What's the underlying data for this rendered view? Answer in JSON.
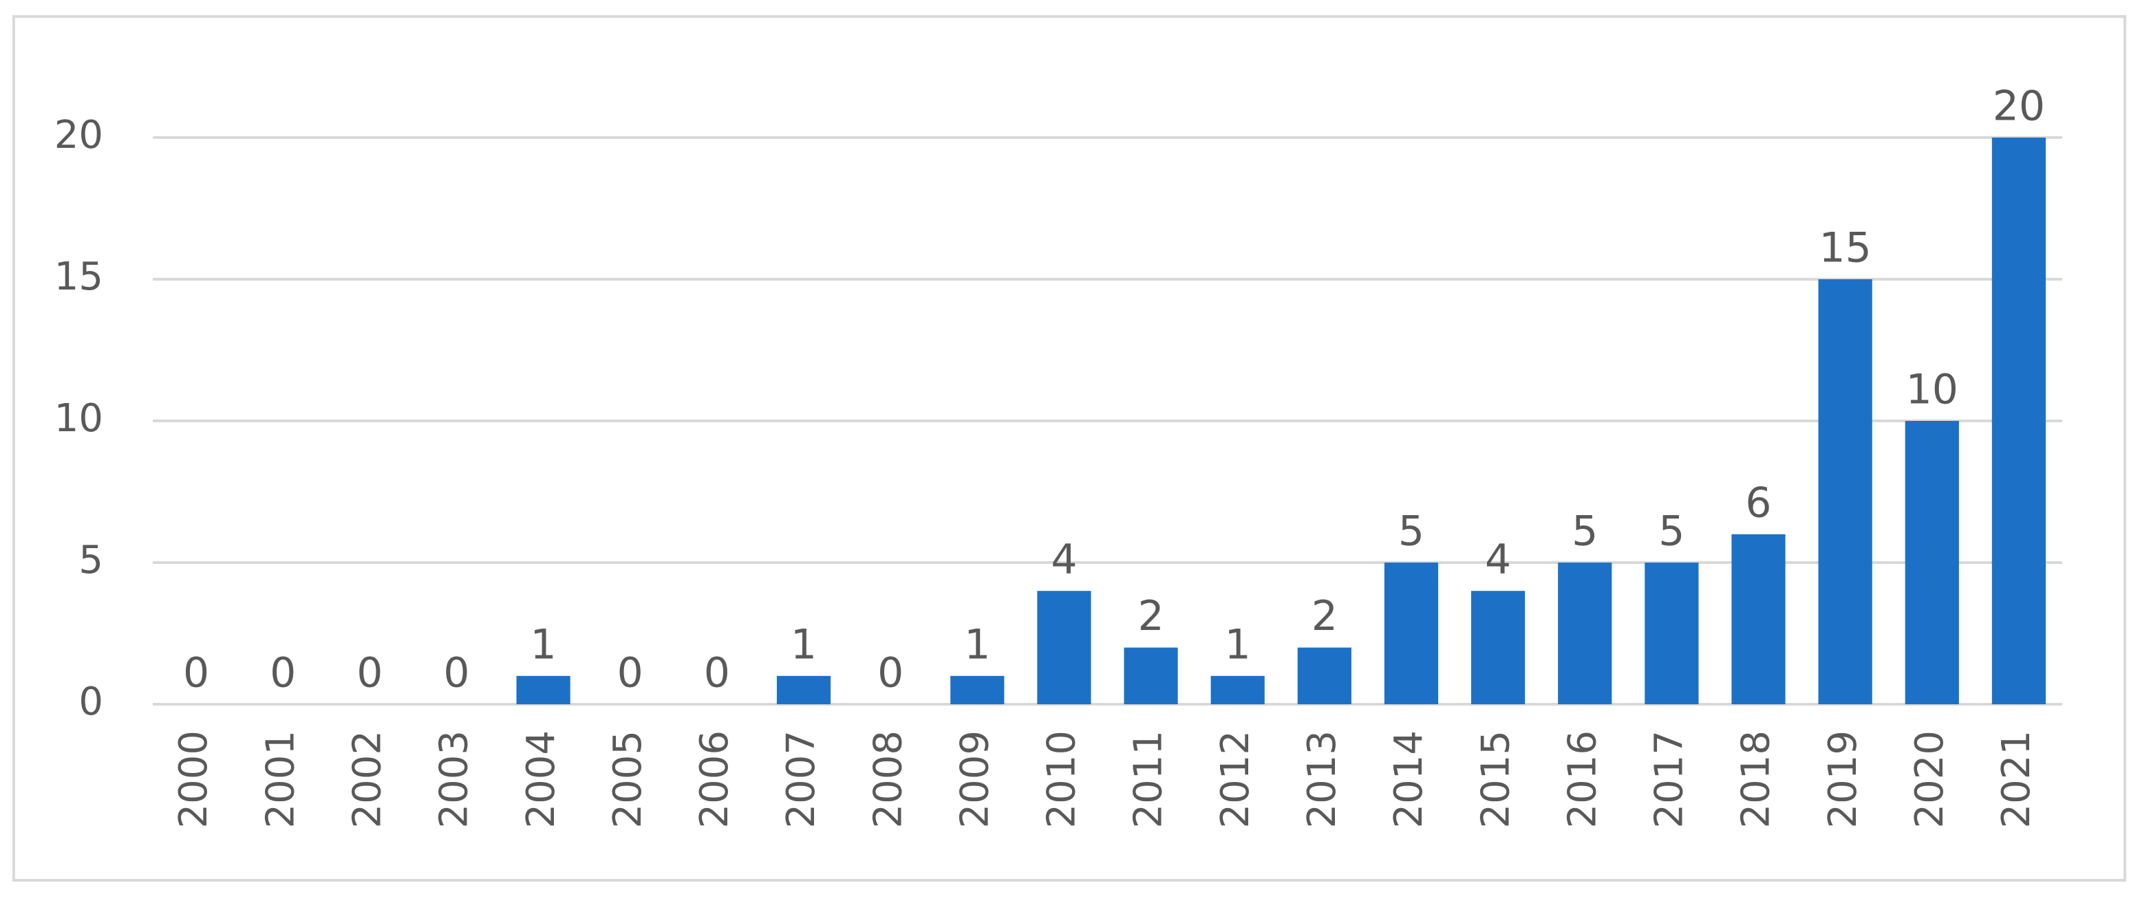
{
  "chart_data": {
    "type": "bar",
    "categories": [
      "2000",
      "2001",
      "2002",
      "2003",
      "2004",
      "2005",
      "2006",
      "2007",
      "2008",
      "2009",
      "2010",
      "2011",
      "2012",
      "2013",
      "2014",
      "2015",
      "2016",
      "2017",
      "2018",
      "2019",
      "2020",
      "2021"
    ],
    "values": [
      0,
      0,
      0,
      0,
      1,
      0,
      0,
      1,
      0,
      1,
      4,
      2,
      1,
      2,
      5,
      4,
      5,
      5,
      6,
      15,
      10,
      20
    ],
    "color": "#1c71c7",
    "ylim": [
      0,
      20
    ],
    "yticks": [
      0,
      5,
      10,
      15,
      20
    ],
    "grid": true
  }
}
